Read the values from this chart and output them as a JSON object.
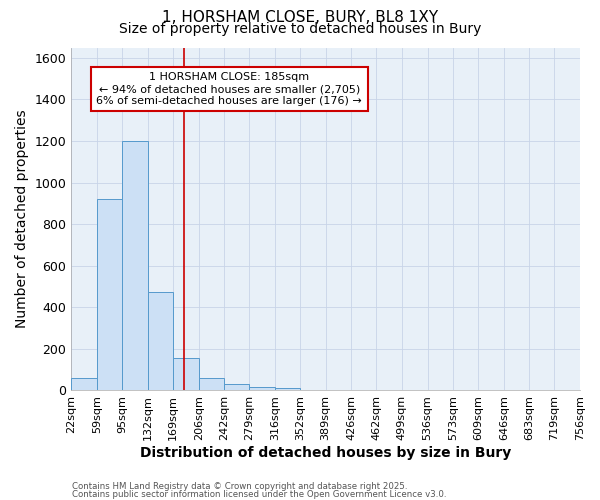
{
  "title_line1": "1, HORSHAM CLOSE, BURY, BL8 1XY",
  "title_line2": "Size of property relative to detached houses in Bury",
  "xlabel": "Distribution of detached houses by size in Bury",
  "ylabel": "Number of detached properties",
  "bar_edges": [
    22,
    59,
    95,
    132,
    169,
    206,
    242,
    279,
    316,
    352,
    389,
    426,
    462,
    499,
    536,
    573,
    609,
    646,
    683,
    719,
    756
  ],
  "bar_heights": [
    60,
    920,
    1200,
    475,
    155,
    62,
    30,
    15,
    10,
    0,
    0,
    0,
    0,
    0,
    0,
    0,
    0,
    0,
    0,
    0
  ],
  "bar_color": "#cce0f5",
  "bar_edgecolor": "#5599cc",
  "vline_x": 185,
  "vline_color": "#cc0000",
  "annotation_text": "1 HORSHAM CLOSE: 185sqm\n← 94% of detached houses are smaller (2,705)\n6% of semi-detached houses are larger (176) →",
  "annotation_box_color": "#cc0000",
  "annotation_bg": "#ffffff",
  "ylim": [
    0,
    1650
  ],
  "xlim": [
    22,
    756
  ],
  "grid_color": "#c8d4e8",
  "bg_color": "#e8f0f8",
  "fig_bg_color": "#ffffff",
  "footer_line1": "Contains HM Land Registry data © Crown copyright and database right 2025.",
  "footer_line2": "Contains public sector information licensed under the Open Government Licence v3.0.",
  "tick_labels": [
    "22sqm",
    "59sqm",
    "95sqm",
    "132sqm",
    "169sqm",
    "206sqm",
    "242sqm",
    "279sqm",
    "316sqm",
    "352sqm",
    "389sqm",
    "426sqm",
    "462sqm",
    "499sqm",
    "536sqm",
    "573sqm",
    "609sqm",
    "646sqm",
    "683sqm",
    "719sqm",
    "756sqm"
  ],
  "title_fontsize": 11,
  "subtitle_fontsize": 10,
  "label_fontsize": 10,
  "tick_fontsize": 8,
  "annotation_fontsize": 8
}
